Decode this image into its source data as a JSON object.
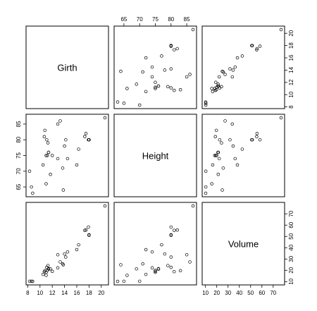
{
  "chart_data": {
    "type": "scatter",
    "kind": "scatterplot-matrix",
    "variables": [
      "Girth",
      "Height",
      "Volume"
    ],
    "ranges": {
      "Girth": [
        8.3,
        20.6
      ],
      "Height": [
        63,
        87
      ],
      "Volume": [
        10.2,
        77.0
      ]
    },
    "ticks": {
      "Girth": [
        8,
        10,
        12,
        14,
        16,
        18,
        20
      ],
      "Height": [
        65,
        70,
        75,
        80,
        85
      ],
      "Volume": [
        10,
        20,
        30,
        40,
        50,
        60,
        70
      ]
    },
    "data": {
      "Girth": [
        8.3,
        8.6,
        8.8,
        10.5,
        10.7,
        10.8,
        11.0,
        11.0,
        11.1,
        11.2,
        11.3,
        11.4,
        11.4,
        11.7,
        12.0,
        12.9,
        12.9,
        13.3,
        13.7,
        13.8,
        14.0,
        14.2,
        14.5,
        16.0,
        16.3,
        17.3,
        17.5,
        17.9,
        18.0,
        18.0,
        20.6
      ],
      "Height": [
        70,
        65,
        63,
        72,
        81,
        83,
        66,
        75,
        80,
        75,
        79,
        76,
        76,
        69,
        75,
        74,
        85,
        86,
        71,
        64,
        78,
        80,
        74,
        72,
        77,
        81,
        82,
        80,
        80,
        80,
        87
      ],
      "Volume": [
        10.3,
        10.3,
        10.2,
        16.4,
        18.8,
        19.7,
        15.6,
        18.2,
        22.6,
        19.9,
        24.2,
        21.0,
        21.4,
        21.3,
        19.1,
        22.2,
        33.8,
        27.4,
        25.7,
        24.9,
        34.5,
        31.7,
        36.3,
        38.3,
        42.6,
        55.4,
        55.7,
        58.3,
        51.5,
        51.0,
        77.0
      ]
    },
    "grid": false,
    "legend": "none"
  }
}
